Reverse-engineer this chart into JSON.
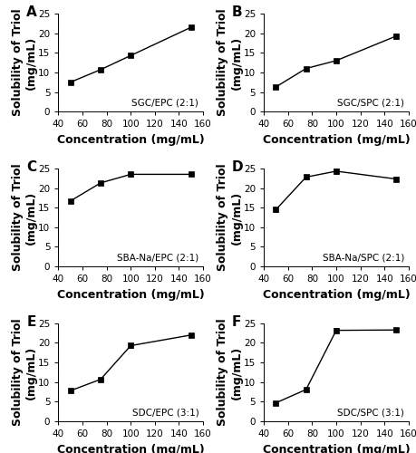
{
  "panels": [
    {
      "label": "A",
      "annotation": "SGC/EPC (2:1)",
      "x": [
        50,
        75,
        100,
        150
      ],
      "y": [
        7.5,
        10.7,
        14.3,
        21.5
      ],
      "yerr": [
        0.3,
        0.3,
        0.45,
        0.5
      ]
    },
    {
      "label": "B",
      "annotation": "SGC/SPC (2:1)",
      "x": [
        50,
        75,
        100,
        150
      ],
      "y": [
        6.3,
        11.0,
        13.0,
        19.3
      ],
      "yerr": [
        0.4,
        0.4,
        0.4,
        0.7
      ]
    },
    {
      "label": "C",
      "annotation": "SBA-Na/EPC (2:1)",
      "x": [
        50,
        75,
        100,
        150
      ],
      "y": [
        16.7,
        21.3,
        23.5,
        23.5
      ],
      "yerr": [
        0.4,
        0.4,
        0.5,
        0.4
      ]
    },
    {
      "label": "D",
      "annotation": "SBA-Na/SPC (2:1)",
      "x": [
        50,
        75,
        100,
        150
      ],
      "y": [
        14.5,
        22.8,
        24.3,
        22.3
      ],
      "yerr": [
        0.5,
        0.5,
        0.6,
        0.5
      ]
    },
    {
      "label": "E",
      "annotation": "SDC/EPC (3:1)",
      "x": [
        50,
        75,
        100,
        150
      ],
      "y": [
        7.8,
        10.7,
        19.3,
        22.0
      ],
      "yerr": [
        0.35,
        0.4,
        0.5,
        0.5
      ]
    },
    {
      "label": "F",
      "annotation": "SDC/SPC (3:1)",
      "x": [
        50,
        75,
        100,
        150
      ],
      "y": [
        4.7,
        8.1,
        23.2,
        23.3
      ],
      "yerr": [
        0.3,
        0.4,
        0.5,
        0.4
      ]
    }
  ],
  "xlim": [
    40,
    160
  ],
  "ylim": [
    0,
    25
  ],
  "xticks": [
    40,
    60,
    80,
    100,
    120,
    140,
    160
  ],
  "yticks": [
    0,
    5,
    10,
    15,
    20,
    25
  ],
  "xlabel": "Concentration (mg/mL)",
  "ylabel": "Solubility of Triol\n(mg/mL)",
  "marker": "s",
  "markersize": 4,
  "linewidth": 1.0,
  "color": "black",
  "capsize": 2.5,
  "label_fontsize": 9,
  "tick_fontsize": 7.5,
  "annot_fontsize": 7.5,
  "panel_label_fontsize": 11
}
